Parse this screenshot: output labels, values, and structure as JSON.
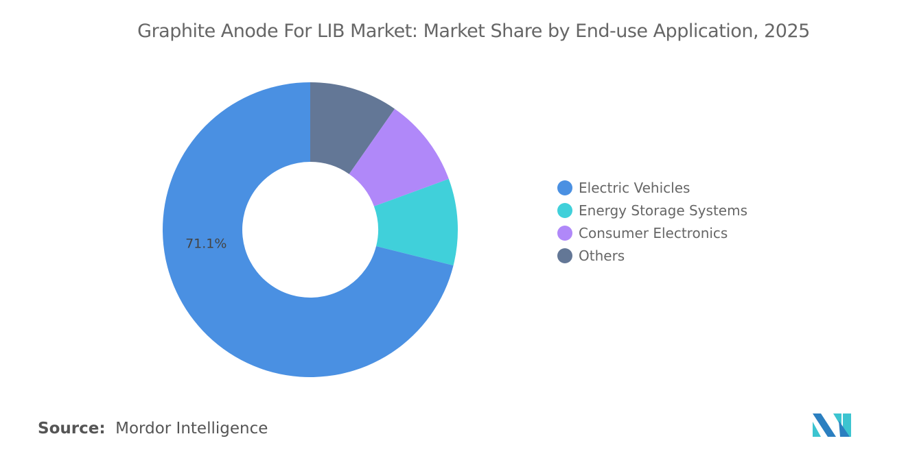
{
  "chart_data": {
    "type": "pie",
    "donut": true,
    "title": "Graphite Anode For LIB Market: Market Share by End-use Application, 2025",
    "categories": [
      "Electric Vehicles",
      "Energy Storage Systems",
      "Consumer Electronics",
      "Others"
    ],
    "values": [
      71.1,
      9.5,
      9.7,
      9.7
    ],
    "colors": [
      "#4a90e2",
      "#40d0da",
      "#b088f9",
      "#637796"
    ],
    "data_labels": [
      "71.1%",
      "",
      "",
      ""
    ],
    "legend_position": "right"
  },
  "source": {
    "label": "Source:",
    "value": "Mordor Intelligence"
  },
  "logo": "Mordor Intelligence logo"
}
